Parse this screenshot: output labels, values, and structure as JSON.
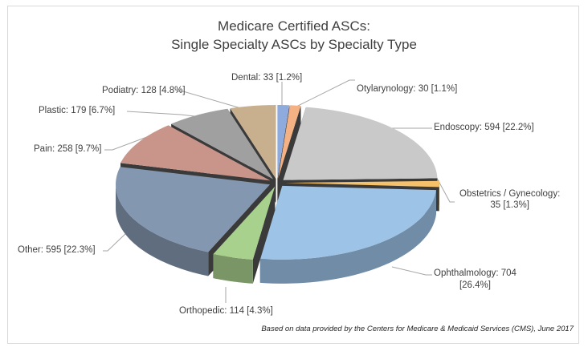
{
  "chart_data": {
    "type": "pie",
    "style": "3d-exploded",
    "title": [
      "Medicare Certified ASCs:",
      "Single Specialty ASCs by Specialty Type"
    ],
    "slices": [
      {
        "name": "Dental",
        "value": 33,
        "percent": "1.2%",
        "label": "Dental: 33 [1.2%]",
        "color": "#8faadc"
      },
      {
        "name": "Otylarynology",
        "value": 30,
        "percent": "1.1%",
        "label": "Otylarynology: 30 [1.1%]",
        "color": "#f4b183"
      },
      {
        "name": "Endoscopy",
        "value": 594,
        "percent": "22.2%",
        "label": "Endoscopy: 594 [22.2%]",
        "color": "#c9c9c9"
      },
      {
        "name": "Obstetrics / Gynecology",
        "value": 35,
        "percent": "1.3%",
        "label": [
          "Obstetrics / Gynecology:",
          "35 [1.3%]"
        ],
        "color": "#f5c26b"
      },
      {
        "name": "Ophthalmology",
        "value": 704,
        "percent": "26.4%",
        "label": [
          "Ophthalmology: 704",
          "[26.4%]"
        ],
        "color": "#9dc3e6"
      },
      {
        "name": "Orthopedic",
        "value": 114,
        "percent": "4.3%",
        "label": "Orthopedic: 114 [4.3%]",
        "color": "#a9d18e"
      },
      {
        "name": "Other",
        "value": 595,
        "percent": "22.3%",
        "label": "Other: 595 [22.3%]",
        "color": "#8497b0"
      },
      {
        "name": "Pain",
        "value": 258,
        "percent": "9.7%",
        "label": "Pain: 258 [9.7%]",
        "color": "#c9958a"
      },
      {
        "name": "Plastic",
        "value": 179,
        "percent": "6.7%",
        "label": "Plastic: 179 [6.7%]",
        "color": "#a0a0a0"
      },
      {
        "name": "Podiatry",
        "value": 128,
        "percent": "4.8%",
        "label": "Podiatry: 128 [4.8%]",
        "color": "#c8b08f"
      }
    ],
    "legend": "none",
    "note": "Based on data provided by the Centers for Medicare & Medicaid Services (CMS), June 2017"
  }
}
